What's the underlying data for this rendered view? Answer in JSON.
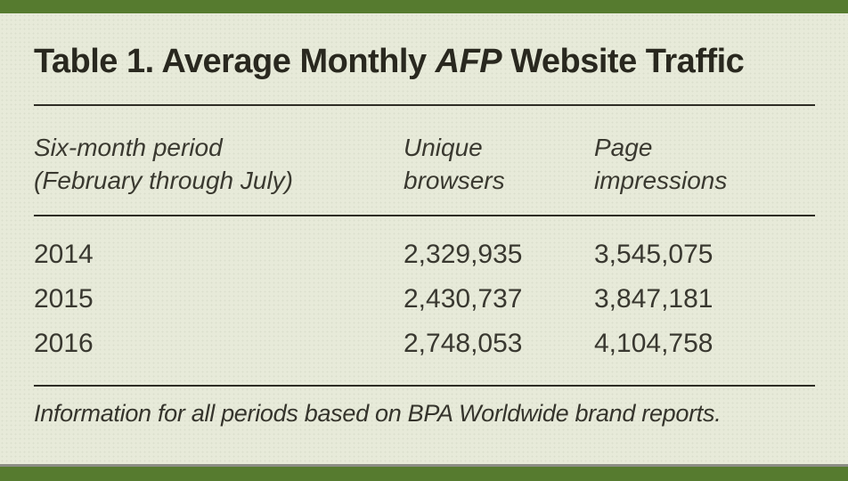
{
  "figure": {
    "title": {
      "prefix": "Table 1. Average Monthly ",
      "emphasis": "AFP",
      "suffix": " Website Traffic"
    },
    "columns": {
      "period": {
        "line1": "Six-month period",
        "line2": "(February through July)"
      },
      "unique_browsers": {
        "line1": "Unique",
        "line2": "browsers"
      },
      "page_impressions": {
        "line1": "Page",
        "line2": "impressions"
      }
    },
    "rows": [
      {
        "period": "2014",
        "unique_browsers": "2,329,935",
        "page_impressions": "3,545,075"
      },
      {
        "period": "2015",
        "unique_browsers": "2,430,737",
        "page_impressions": "3,847,181"
      },
      {
        "period": "2016",
        "unique_browsers": "2,748,053",
        "page_impressions": "4,104,758"
      }
    ],
    "footnote": "Information for all periods based on BPA Worldwide brand reports."
  },
  "chart_data": {
    "type": "table",
    "title": "Table 1. Average Monthly AFP Website Traffic",
    "columns": [
      "Six-month period (February through July)",
      "Unique browsers",
      "Page impressions"
    ],
    "rows": [
      [
        "2014",
        2329935,
        3545075
      ],
      [
        "2015",
        2430737,
        3847181
      ],
      [
        "2016",
        2748053,
        4104758
      ]
    ],
    "footnote": "Information for all periods based on BPA Worldwide brand reports."
  },
  "colors": {
    "accent_green": "#567b2f",
    "background": "#e7ead9",
    "rule": "#2e2d25",
    "gray_line": "#8b8d84",
    "text": "#35342d"
  }
}
